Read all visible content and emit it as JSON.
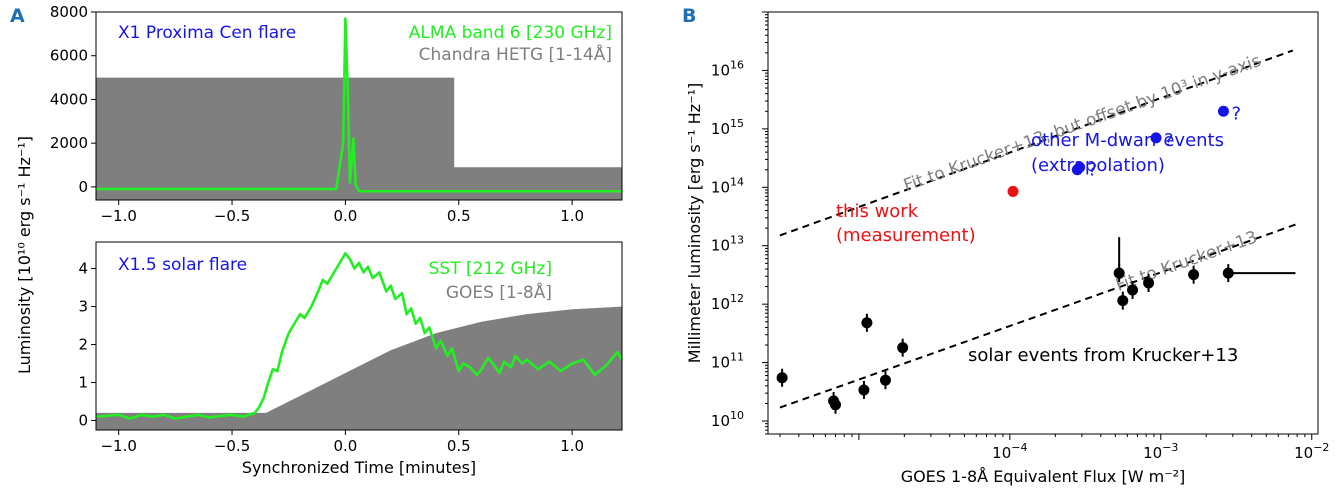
{
  "chart_data": [
    {
      "panel": "A",
      "type": "line",
      "title": "",
      "xlabel": "",
      "ylabel": "",
      "xlim": [
        -1.1,
        1.22
      ],
      "ylim": [
        -600,
        8000
      ],
      "xticks": [
        -1.0,
        -0.5,
        0.0,
        0.5,
        1.0
      ],
      "xtick_labels": [
        "−1.0",
        "−0.5",
        "0.0",
        "0.5",
        "1.0"
      ],
      "yticks": [
        0,
        2000,
        4000,
        6000,
        8000
      ],
      "ytick_labels": [
        "0",
        "2000",
        "4000",
        "6000",
        "8000"
      ],
      "annotations": [
        {
          "text": "X1 Proxima Cen flare",
          "color": "#1515e8",
          "role": "event-label"
        }
      ],
      "series": [
        {
          "name": "ALMA band 6 [230 GHz]",
          "color": "#22ee22",
          "kind": "line",
          "x": [
            -1.1,
            -0.3,
            -0.04,
            -0.01,
            0.0,
            0.01,
            0.02,
            0.035,
            0.045,
            0.06,
            0.08,
            0.5,
            1.0,
            1.22
          ],
          "y": [
            -100,
            -100,
            -100,
            2000,
            7700,
            4500,
            200,
            2200,
            100,
            -200,
            -200,
            -200,
            -200,
            -200
          ]
        },
        {
          "name": "Chandra HETG [1-14Å]",
          "color": "#7f7f7f",
          "kind": "area",
          "x": [
            -1.1,
            0.48,
            0.48,
            1.22
          ],
          "y": [
            5000,
            5000,
            900,
            900
          ]
        }
      ]
    },
    {
      "panel": "A",
      "type": "line",
      "title": "",
      "xlabel": "Synchronized Time [minutes]",
      "ylabel": "",
      "xlim": [
        -1.1,
        1.22
      ],
      "ylim": [
        -0.25,
        4.7
      ],
      "xticks": [
        -1.0,
        -0.5,
        0.0,
        0.5,
        1.0
      ],
      "xtick_labels": [
        "−1.0",
        "−0.5",
        "0.0",
        "0.5",
        "1.0"
      ],
      "yticks": [
        0,
        1,
        2,
        3,
        4
      ],
      "ytick_labels": [
        "0",
        "1",
        "2",
        "3",
        "4"
      ],
      "annotations": [
        {
          "text": "X1.5 solar flare",
          "color": "#1515e8",
          "role": "event-label"
        }
      ],
      "series": [
        {
          "name": "SST [212 GHz]",
          "color": "#22ee22",
          "kind": "line",
          "x": [
            -1.1,
            -1.0,
            -0.95,
            -0.9,
            -0.85,
            -0.8,
            -0.75,
            -0.7,
            -0.65,
            -0.6,
            -0.55,
            -0.5,
            -0.45,
            -0.4,
            -0.38,
            -0.36,
            -0.34,
            -0.32,
            -0.3,
            -0.28,
            -0.25,
            -0.22,
            -0.2,
            -0.18,
            -0.15,
            -0.12,
            -0.1,
            -0.08,
            -0.05,
            -0.02,
            0.0,
            0.02,
            0.04,
            0.06,
            0.08,
            0.1,
            0.12,
            0.15,
            0.18,
            0.2,
            0.22,
            0.25,
            0.27,
            0.29,
            0.31,
            0.33,
            0.35,
            0.37,
            0.4,
            0.42,
            0.45,
            0.47,
            0.5,
            0.52,
            0.55,
            0.58,
            0.6,
            0.63,
            0.65,
            0.68,
            0.7,
            0.73,
            0.75,
            0.78,
            0.8,
            0.85,
            0.9,
            0.95,
            1.0,
            1.05,
            1.1,
            1.15,
            1.2,
            1.22
          ],
          "y": [
            0.1,
            0.15,
            0.05,
            0.15,
            0.1,
            0.15,
            0.05,
            0.1,
            0.15,
            0.08,
            0.12,
            0.15,
            0.1,
            0.2,
            0.35,
            0.6,
            1.0,
            1.35,
            1.3,
            1.8,
            2.3,
            2.6,
            2.8,
            2.7,
            3.0,
            3.4,
            3.7,
            3.6,
            3.9,
            4.2,
            4.4,
            4.25,
            4.0,
            4.15,
            3.9,
            4.05,
            3.75,
            3.9,
            3.4,
            3.55,
            3.2,
            3.35,
            2.8,
            2.95,
            2.55,
            2.7,
            2.3,
            2.45,
            1.9,
            2.1,
            1.7,
            1.9,
            1.3,
            1.5,
            1.4,
            1.2,
            1.35,
            1.65,
            1.5,
            1.25,
            1.55,
            1.4,
            1.7,
            1.5,
            1.6,
            1.35,
            1.55,
            1.3,
            1.5,
            1.6,
            1.2,
            1.45,
            1.8,
            1.6
          ]
        },
        {
          "name": "GOES [1-8Å]",
          "color": "#7f7f7f",
          "kind": "area",
          "x": [
            -1.1,
            -0.35,
            -0.2,
            0.0,
            0.2,
            0.4,
            0.6,
            0.8,
            1.0,
            1.22
          ],
          "y": [
            0.2,
            0.2,
            0.65,
            1.25,
            1.85,
            2.3,
            2.6,
            2.8,
            2.93,
            3.0
          ]
        }
      ]
    },
    {
      "panel": "B",
      "type": "scatter",
      "title": "",
      "xlabel": "GOES 1-8Å Equivalent Flux [W m⁻²]",
      "ylabel": "Millimeter luminosity [erg s⁻¹ Hz⁻¹]",
      "xscale": "log",
      "yscale": "log",
      "xlim": [
        2.5e-06,
        0.011
      ],
      "ylim": [
        6000000000,
        100000000000000000
      ],
      "xtick_exponents": [
        -4,
        -3,
        -2
      ],
      "ytick_exponents": [
        10,
        11,
        12,
        13,
        14,
        15,
        16
      ],
      "series": [
        {
          "name": "solar events from Krucker+13",
          "color": "#000000",
          "points": [
            {
              "x": 3.1e-06,
              "y": 55000000000
            },
            {
              "x": 6.8e-06,
              "y": 22000000000
            },
            {
              "x": 7e-06,
              "y": 19000000000
            },
            {
              "x": 1.08e-05,
              "y": 34000000000
            },
            {
              "x": 1.13e-05,
              "y": 480000000000
            },
            {
              "x": 1.5e-05,
              "y": 50000000000
            },
            {
              "x": 1.95e-05,
              "y": 180000000000
            },
            {
              "x": 0.00053,
              "y": 3400000000000
            },
            {
              "x": 0.00056,
              "y": 1150000000000
            },
            {
              "x": 0.00065,
              "y": 1750000000000
            },
            {
              "x": 0.00083,
              "y": 2300000000000
            },
            {
              "x": 0.00165,
              "y": 3200000000000
            },
            {
              "x": 0.0028,
              "y": 3400000000000
            }
          ]
        },
        {
          "name": "this work",
          "color": "#ee1111",
          "points": [
            {
              "x": 0.000105,
              "y": 85000000000000
            }
          ]
        },
        {
          "name": "other M-dwarf events",
          "color": "#1515e8",
          "points": [
            {
              "x": 0.00028,
              "y": 200000000000000
            },
            {
              "x": 0.00029,
              "y": 220000000000000
            },
            {
              "x": 0.00093,
              "y": 700000000000000
            },
            {
              "x": 0.0026,
              "y": 2000000000000000
            }
          ]
        }
      ],
      "fits": [
        {
          "name": "Fit to Krucker+13",
          "x": [
            3e-06,
            0.0078
          ],
          "y": [
            17000000000,
            23000000000000
          ]
        },
        {
          "name": "Fit to Krucker+13, but offset by 10³ in y-axis",
          "x": [
            3e-06,
            0.0075
          ],
          "y": [
            15000000000000,
            22000000000000000
          ]
        }
      ],
      "annotations": [
        {
          "text": "this work",
          "color": "#ee1111"
        },
        {
          "text": "(measurement)",
          "color": "#ee1111"
        },
        {
          "text": "other M-dwarf events",
          "color": "#1515e8"
        },
        {
          "text": "(extrapolation)",
          "color": "#1515e8"
        },
        {
          "text": "solar events from Krucker+13",
          "color": "#000000"
        },
        {
          "text": "Fit to Krucker+13",
          "color": "#808080"
        },
        {
          "text": "Fit to Krucker+13, but offset by 10³ in y-axis",
          "color": "#808080"
        },
        {
          "text": "?",
          "color": "#1515e8"
        }
      ]
    }
  ],
  "panel_labels": {
    "a": "A",
    "b": "B"
  },
  "shared_ylabel": "Luminosity [10¹⁰ erg s⁻¹ Hz⁻¹]",
  "colors": {
    "blue": "#1515e8",
    "green": "#22ee22",
    "gray": "#7f7f7f",
    "red": "#ee1111",
    "panel_label": "#1f6fb4"
  }
}
